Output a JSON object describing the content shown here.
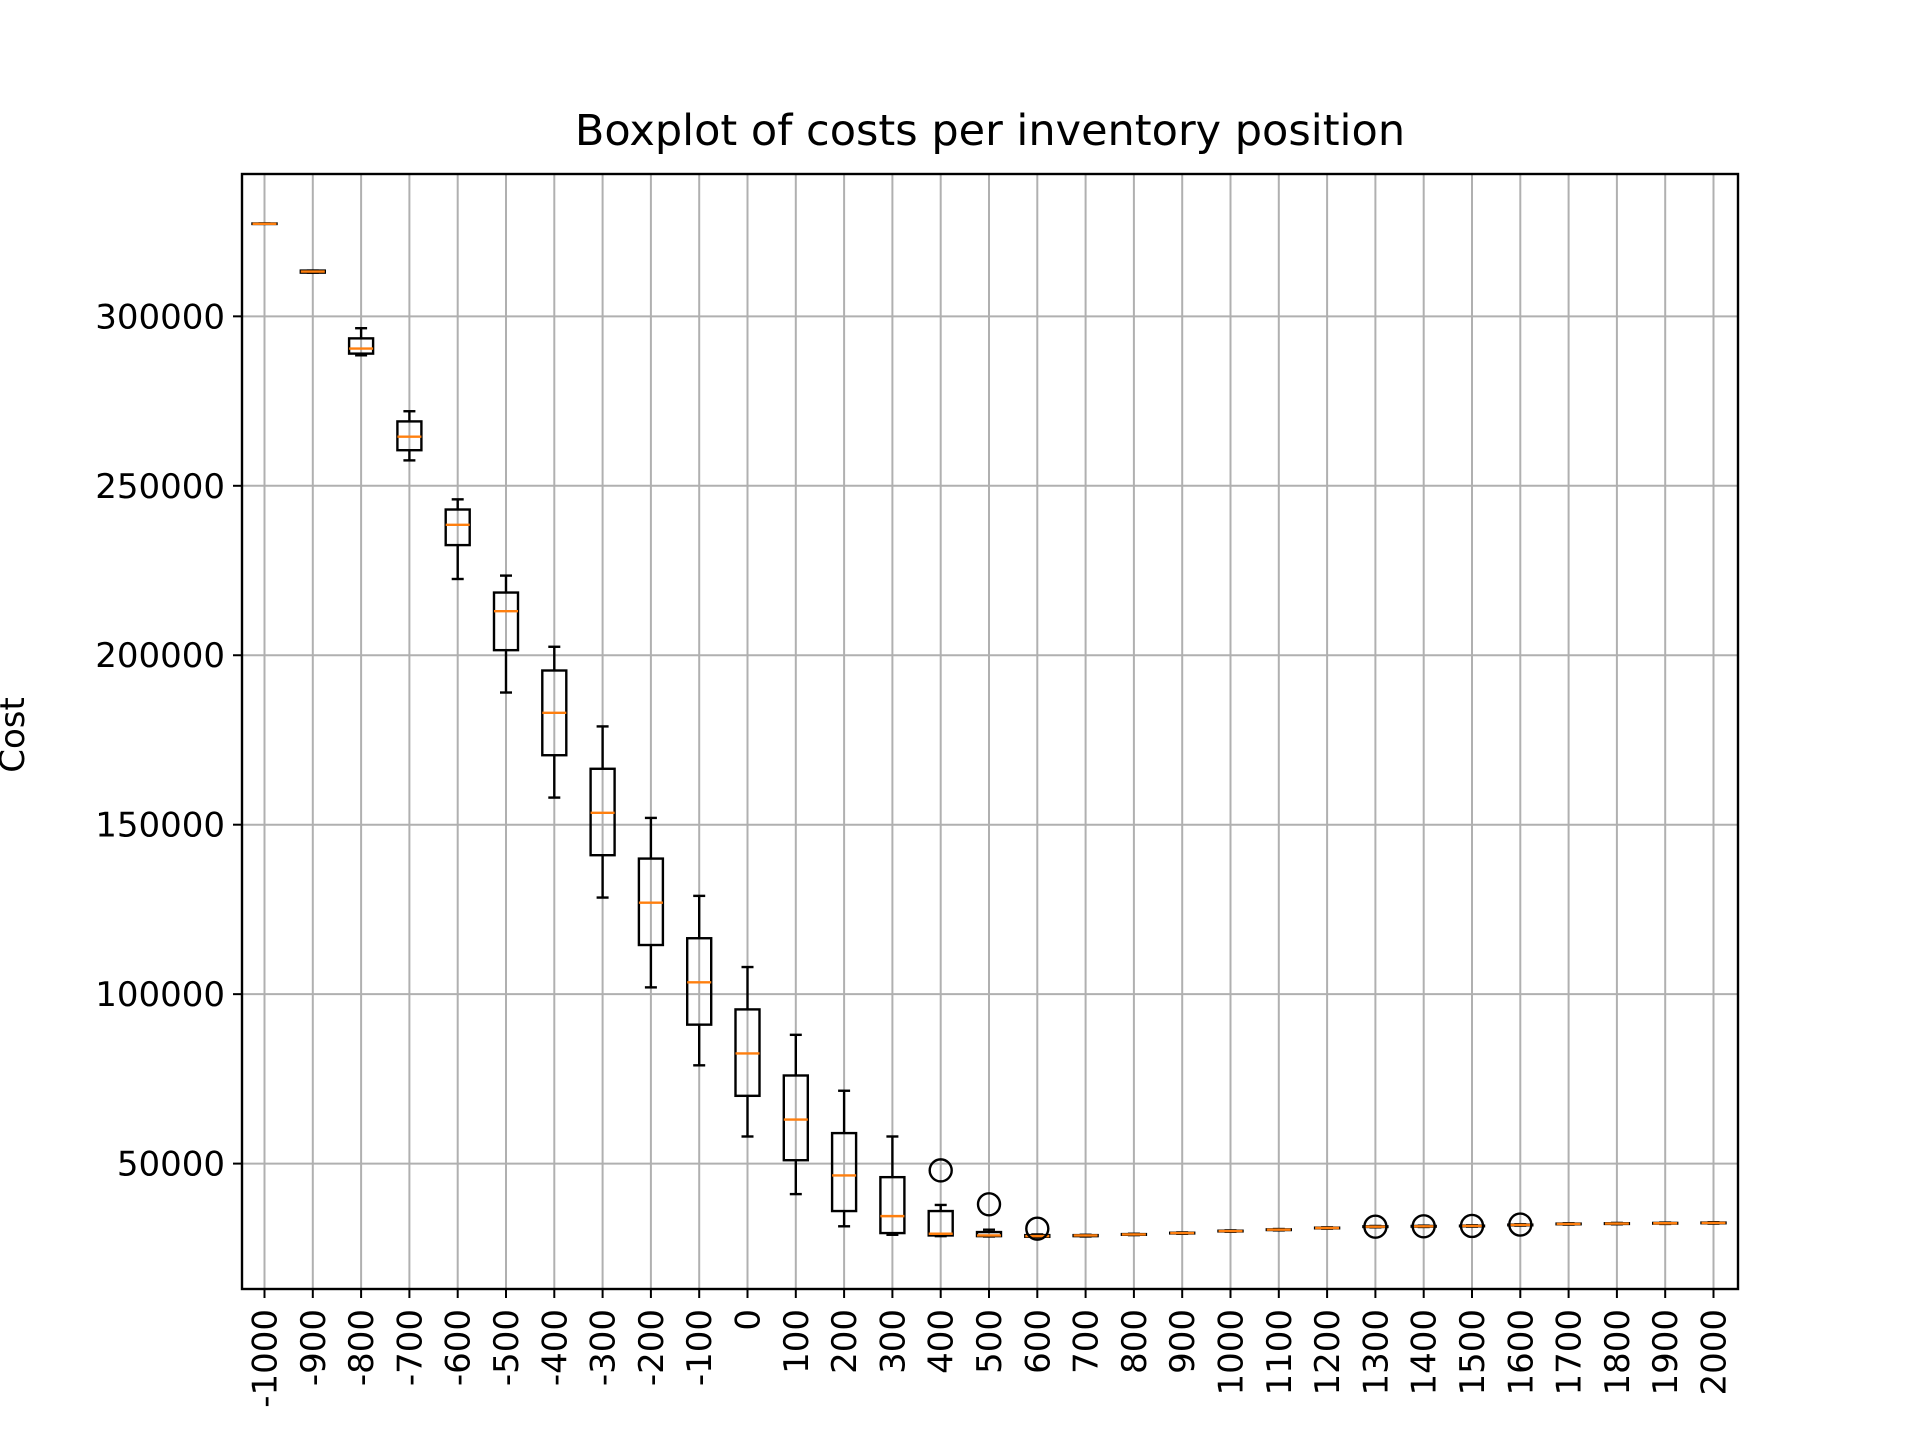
{
  "chart_data": {
    "type": "box",
    "title": "Boxplot of costs per inventory position",
    "xlabel": "",
    "ylabel": "Cost",
    "ylim": [
      13000,
      342000
    ],
    "yticks": [
      "50000",
      "100000",
      "150000",
      "200000",
      "250000",
      "300000"
    ],
    "grid": true,
    "legend": "none",
    "colors": {
      "box": "#000000",
      "median": "#ff7f0e",
      "grid": "#b0b0b0"
    },
    "categories": [
      "-1000",
      "-900",
      "-800",
      "-700",
      "-600",
      "-500",
      "-400",
      "-300",
      "-200",
      "-100",
      "0",
      "100",
      "200",
      "300",
      "400",
      "500",
      "600",
      "700",
      "800",
      "900",
      "1000",
      "1100",
      "1200",
      "1300",
      "1400",
      "1500",
      "1600",
      "1700",
      "1800",
      "1900",
      "2000"
    ],
    "boxes": [
      {
        "whislo": 327300,
        "q1": 327300,
        "med": 327300,
        "q3": 327400,
        "whishi": 327400,
        "fliers": []
      },
      {
        "whislo": 312900,
        "q1": 312900,
        "med": 313200,
        "q3": 313500,
        "whishi": 313500,
        "fliers": []
      },
      {
        "whislo": 288500,
        "q1": 289000,
        "med": 290500,
        "q3": 293500,
        "whishi": 296500,
        "fliers": []
      },
      {
        "whislo": 257500,
        "q1": 260500,
        "med": 264500,
        "q3": 269000,
        "whishi": 272000,
        "fliers": []
      },
      {
        "whislo": 222500,
        "q1": 232500,
        "med": 238500,
        "q3": 243000,
        "whishi": 246000,
        "fliers": []
      },
      {
        "whislo": 189000,
        "q1": 201500,
        "med": 213000,
        "q3": 218500,
        "whishi": 223500,
        "fliers": []
      },
      {
        "whislo": 158000,
        "q1": 170500,
        "med": 183000,
        "q3": 195500,
        "whishi": 202500,
        "fliers": []
      },
      {
        "whislo": 128500,
        "q1": 141000,
        "med": 153500,
        "q3": 166500,
        "whishi": 179000,
        "fliers": []
      },
      {
        "whislo": 102000,
        "q1": 114500,
        "med": 127000,
        "q3": 140000,
        "whishi": 152000,
        "fliers": []
      },
      {
        "whislo": 79000,
        "q1": 91000,
        "med": 103500,
        "q3": 116500,
        "whishi": 129000,
        "fliers": []
      },
      {
        "whislo": 58000,
        "q1": 70000,
        "med": 82500,
        "q3": 95500,
        "whishi": 108000,
        "fliers": []
      },
      {
        "whislo": 41000,
        "q1": 51000,
        "med": 63000,
        "q3": 76000,
        "whishi": 88000,
        "fliers": []
      },
      {
        "whislo": 31500,
        "q1": 36000,
        "med": 46500,
        "q3": 59000,
        "whishi": 71500,
        "fliers": []
      },
      {
        "whislo": 29000,
        "q1": 29500,
        "med": 34500,
        "q3": 46000,
        "whishi": 58000,
        "fliers": []
      },
      {
        "whislo": 28600,
        "q1": 28800,
        "med": 29300,
        "q3": 36000,
        "whishi": 37800,
        "fliers": [
          48000
        ]
      },
      {
        "whislo": 28500,
        "q1": 28600,
        "med": 28800,
        "q3": 29800,
        "whishi": 30500,
        "fliers": [
          38000
        ]
      },
      {
        "whislo": 28300,
        "q1": 28400,
        "med": 28600,
        "q3": 28900,
        "whishi": 29100,
        "fliers": [
          30800
        ]
      },
      {
        "whislo": 28500,
        "q1": 28600,
        "med": 28800,
        "q3": 28900,
        "whishi": 29000,
        "fliers": []
      },
      {
        "whislo": 28900,
        "q1": 29000,
        "med": 29100,
        "q3": 29200,
        "whishi": 29300,
        "fliers": []
      },
      {
        "whislo": 29300,
        "q1": 29400,
        "med": 29500,
        "q3": 29600,
        "whishi": 29700,
        "fliers": []
      },
      {
        "whislo": 29900,
        "q1": 30000,
        "med": 30100,
        "q3": 30200,
        "whishi": 30300,
        "fliers": []
      },
      {
        "whislo": 30300,
        "q1": 30400,
        "med": 30500,
        "q3": 30600,
        "whishi": 30700,
        "fliers": []
      },
      {
        "whislo": 30800,
        "q1": 30900,
        "med": 31000,
        "q3": 31100,
        "whishi": 31200,
        "fliers": []
      },
      {
        "whislo": 31200,
        "q1": 31300,
        "med": 31400,
        "q3": 31500,
        "whishi": 31600,
        "fliers": [
          31400
        ]
      },
      {
        "whislo": 31300,
        "q1": 31400,
        "med": 31500,
        "q3": 31600,
        "whishi": 31700,
        "fliers": [
          31500
        ]
      },
      {
        "whislo": 31400,
        "q1": 31500,
        "med": 31600,
        "q3": 31700,
        "whishi": 31800,
        "fliers": [
          31600
        ]
      },
      {
        "whislo": 31700,
        "q1": 31800,
        "med": 31900,
        "q3": 32000,
        "whishi": 32100,
        "fliers": [
          32000
        ]
      },
      {
        "whislo": 32000,
        "q1": 32100,
        "med": 32200,
        "q3": 32300,
        "whishi": 32400,
        "fliers": []
      },
      {
        "whislo": 32100,
        "q1": 32200,
        "med": 32300,
        "q3": 32400,
        "whishi": 32500,
        "fliers": []
      },
      {
        "whislo": 32200,
        "q1": 32300,
        "med": 32400,
        "q3": 32500,
        "whishi": 32600,
        "fliers": []
      },
      {
        "whislo": 32300,
        "q1": 32400,
        "med": 32500,
        "q3": 32600,
        "whishi": 32700,
        "fliers": []
      }
    ]
  }
}
